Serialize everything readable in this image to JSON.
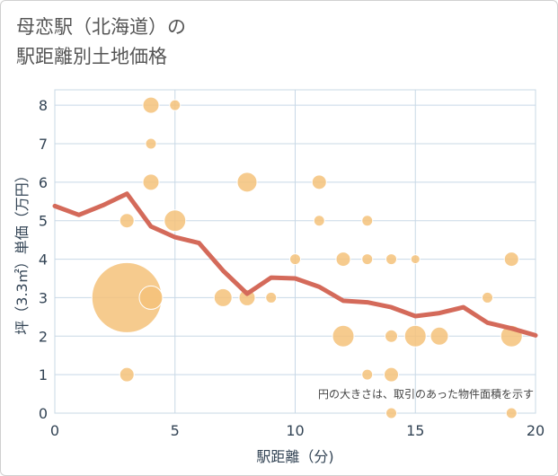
{
  "title_line1": "母恋駅（北海道）の",
  "title_line2": "駅距離別土地価格",
  "colors": {
    "bubble": "#f4c27a",
    "line": "#d46a5a",
    "grid": "#c8d8e6",
    "axis_text": "#334455"
  },
  "chart_data": {
    "type": "scatter",
    "xlabel": "駅距離（分)",
    "ylabel": "坪（3.3㎡）単価（万円）",
    "xlim": [
      0,
      20
    ],
    "ylim": [
      0,
      8.4
    ],
    "xticks": [
      "0",
      "5",
      "10",
      "15",
      "20"
    ],
    "yticks": [
      "0",
      "1",
      "2",
      "3",
      "4",
      "5",
      "6",
      "7",
      "8"
    ],
    "note": "円の大きさは、取引のあった物件面積を示す",
    "points": [
      {
        "x": 3,
        "y": 3,
        "s": 39
      },
      {
        "x": 3,
        "y": 5,
        "s": 8
      },
      {
        "x": 3,
        "y": 1,
        "s": 8
      },
      {
        "x": 4,
        "y": 8,
        "s": 9
      },
      {
        "x": 4,
        "y": 7,
        "s": 6
      },
      {
        "x": 4,
        "y": 6,
        "s": 9
      },
      {
        "x": 4,
        "y": 3,
        "s": 13
      },
      {
        "x": 5,
        "y": 8,
        "s": 6
      },
      {
        "x": 5,
        "y": 5,
        "s": 12
      },
      {
        "x": 7,
        "y": 3,
        "s": 10
      },
      {
        "x": 8,
        "y": 6,
        "s": 11
      },
      {
        "x": 8,
        "y": 3,
        "s": 9
      },
      {
        "x": 9,
        "y": 3,
        "s": 6
      },
      {
        "x": 10,
        "y": 4,
        "s": 6
      },
      {
        "x": 11,
        "y": 6,
        "s": 8
      },
      {
        "x": 11,
        "y": 5,
        "s": 6
      },
      {
        "x": 12,
        "y": 4,
        "s": 8
      },
      {
        "x": 12,
        "y": 2,
        "s": 12
      },
      {
        "x": 13,
        "y": 5,
        "s": 6
      },
      {
        "x": 13,
        "y": 4,
        "s": 6
      },
      {
        "x": 13,
        "y": 1,
        "s": 6
      },
      {
        "x": 14,
        "y": 4,
        "s": 6
      },
      {
        "x": 14,
        "y": 2,
        "s": 7
      },
      {
        "x": 14,
        "y": 1,
        "s": 8
      },
      {
        "x": 14,
        "y": 0,
        "s": 6
      },
      {
        "x": 15,
        "y": 4,
        "s": 5
      },
      {
        "x": 15,
        "y": 2,
        "s": 12
      },
      {
        "x": 16,
        "y": 2,
        "s": 10
      },
      {
        "x": 18,
        "y": 3,
        "s": 6
      },
      {
        "x": 19,
        "y": 4,
        "s": 8
      },
      {
        "x": 19,
        "y": 2,
        "s": 12
      },
      {
        "x": 19,
        "y": 0,
        "s": 6
      }
    ],
    "trend": {
      "x": [
        0,
        1,
        2,
        3,
        4,
        5,
        6,
        7,
        8,
        9,
        10,
        11,
        12,
        13,
        14,
        15,
        16,
        17,
        18,
        19,
        20
      ],
      "y": [
        5.38,
        5.15,
        5.4,
        5.7,
        4.85,
        4.57,
        4.42,
        3.7,
        3.1,
        3.52,
        3.5,
        3.28,
        2.92,
        2.88,
        2.75,
        2.52,
        2.6,
        2.75,
        2.35,
        2.2,
        2.02
      ]
    }
  }
}
